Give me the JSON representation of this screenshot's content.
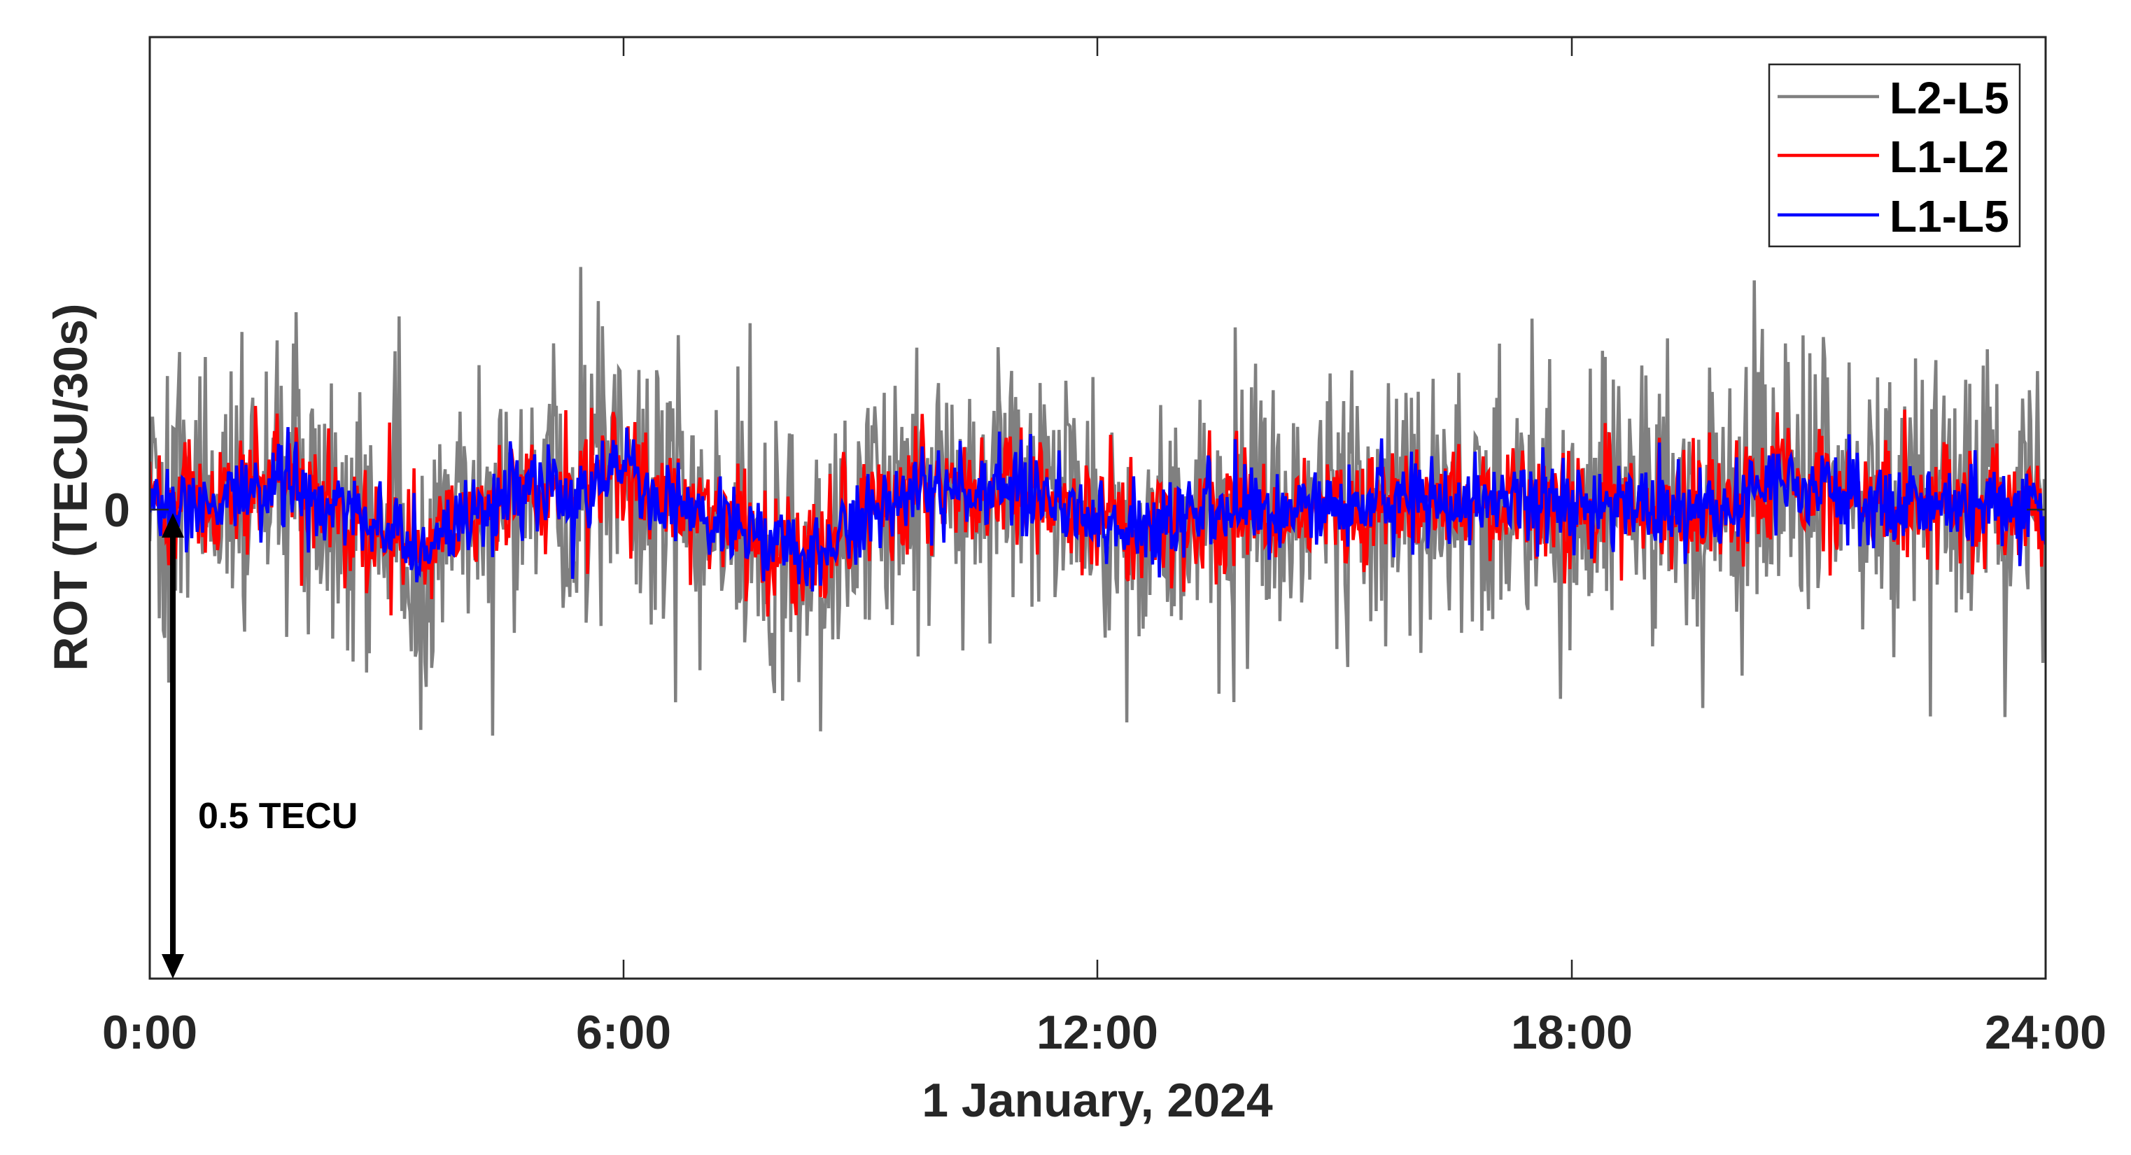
{
  "chart_data": {
    "type": "line",
    "title": "",
    "xlabel": "1 January, 2024",
    "ylabel": "ROT (TECU/30s)",
    "x_unit": "hours",
    "xlim": [
      0,
      24
    ],
    "ylim": [
      -0.5,
      0.5
    ],
    "x_ticks": [
      0,
      6,
      12,
      18,
      24
    ],
    "x_tick_labels": [
      "0:00",
      "6:00",
      "12:00",
      "18:00",
      "24:00"
    ],
    "y_ticks": [
      0
    ],
    "y_tick_labels": [
      "0"
    ],
    "grid": false,
    "legend_position": "upper right",
    "sampling_interval_s": 30,
    "annotation": {
      "text": "0.5 TECU",
      "type": "double-arrow scale bar",
      "x_hours": 0.35,
      "y_from": 0.0,
      "y_to": -0.5
    },
    "series": [
      {
        "name": "L2-L5",
        "color": "#808080",
        "noise_std": 0.075,
        "peak_max": 0.26,
        "peak_min": -0.27,
        "baseline_scale": 1.3
      },
      {
        "name": "L1-L2",
        "color": "#ff0000",
        "noise_std": 0.032,
        "peak_max": 0.11,
        "peak_min": -0.12,
        "baseline_scale": 1.0
      },
      {
        "name": "L1-L5",
        "color": "#0000ff",
        "noise_std": 0.022,
        "peak_max": 0.09,
        "peak_min": -0.09,
        "baseline_scale": 1.0
      }
    ],
    "baseline_trend": {
      "hours": [
        0,
        0.8,
        1.6,
        2.4,
        3.0,
        3.6,
        4.2,
        4.8,
        5.4,
        5.9,
        6.6,
        7.3,
        8.0,
        8.4,
        9.0,
        9.8,
        10.5,
        11.0,
        11.6,
        12.2,
        13.0,
        14.0,
        15.0,
        16.0,
        17.0,
        18.0,
        19.0,
        19.8,
        20.6,
        21.2,
        22.0,
        23.0,
        24.0
      ],
      "values": [
        0.0,
        0.005,
        0.025,
        0.0,
        -0.025,
        -0.04,
        -0.005,
        0.02,
        0.01,
        0.045,
        0.0,
        -0.02,
        -0.04,
        -0.055,
        -0.01,
        0.02,
        0.025,
        0.02,
        0.005,
        -0.015,
        -0.01,
        0.0,
        0.005,
        0.01,
        0.005,
        0.0,
        0.0,
        -0.005,
        0.03,
        0.02,
        0.0,
        0.005,
        0.0
      ]
    }
  },
  "legend": {
    "items": [
      {
        "label": "L2-L5",
        "color": "#808080"
      },
      {
        "label": "L1-L2",
        "color": "#ff0000"
      },
      {
        "label": "L1-L5",
        "color": "#0000ff"
      }
    ]
  },
  "axes": {
    "x_tick_labels": [
      "0:00",
      "6:00",
      "12:00",
      "18:00",
      "24:00"
    ],
    "y_tick_label": "0",
    "xlabel": "1 January, 2024",
    "ylabel": "ROT (TECU/30s)"
  },
  "annotation": {
    "label": "0.5 TECU"
  }
}
